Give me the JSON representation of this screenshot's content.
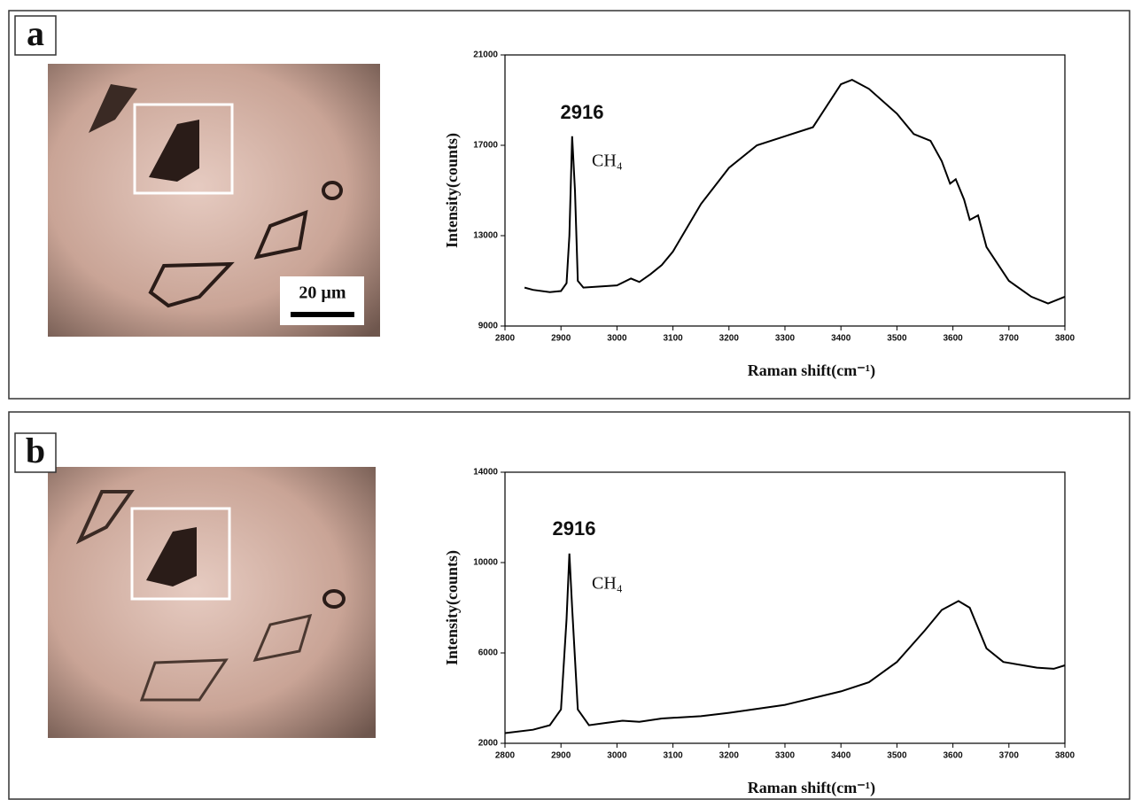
{
  "chart_data": [
    {
      "type": "line",
      "panel_label": "a",
      "scale_bar": "20 µm",
      "x_label": "Raman shift(cm⁻¹)",
      "y_label": "Intensity(counts)",
      "annotations": [
        "2916",
        "CH₄"
      ],
      "x": [
        2835,
        2850,
        2880,
        2900,
        2910,
        2915,
        2920,
        2925,
        2930,
        2940,
        2970,
        3000,
        3025,
        3040,
        3060,
        3080,
        3100,
        3150,
        3200,
        3250,
        3300,
        3350,
        3400,
        3420,
        3450,
        3500,
        3530,
        3560,
        3580,
        3595,
        3605,
        3620,
        3630,
        3645,
        3660,
        3700,
        3740,
        3770,
        3800
      ],
      "series": [
        {
          "color": "#000000",
          "values": [
            10700,
            10600,
            10500,
            10550,
            10900,
            13000,
            17400,
            15000,
            11000,
            10700,
            10750,
            10800,
            11100,
            10950,
            11300,
            11700,
            12300,
            14400,
            16000,
            17000,
            17400,
            17800,
            19700,
            19900,
            19500,
            18400,
            17500,
            17200,
            16300,
            15300,
            15500,
            14600,
            13700,
            13900,
            12500,
            11000,
            10300,
            10000,
            10300
          ]
        }
      ],
      "xlim": [
        2800,
        3800
      ],
      "xticks": [
        2800,
        2900,
        3000,
        3100,
        3200,
        3300,
        3400,
        3500,
        3600,
        3700,
        3800
      ],
      "ylim": [
        9000,
        21000
      ],
      "yticks": [
        9000,
        13000,
        17000,
        21000
      ]
    },
    {
      "type": "line",
      "panel_label": "b",
      "x_label": "Raman shift(cm⁻¹)",
      "y_label": "Intensity(counts)",
      "annotations": [
        "2916",
        "CH₄"
      ],
      "x": [
        2800,
        2850,
        2880,
        2900,
        2910,
        2915,
        2920,
        2930,
        2950,
        2980,
        3010,
        3040,
        3080,
        3150,
        3200,
        3300,
        3400,
        3450,
        3500,
        3550,
        3580,
        3610,
        3630,
        3660,
        3690,
        3750,
        3780,
        3800
      ],
      "series": [
        {
          "color": "#000000",
          "values": [
            2450,
            2600,
            2800,
            3500,
            7500,
            10400,
            8000,
            3500,
            2800,
            2900,
            3000,
            2950,
            3100,
            3200,
            3350,
            3700,
            4300,
            4700,
            5600,
            7000,
            7900,
            8300,
            8000,
            6200,
            5600,
            5350,
            5300,
            5450
          ]
        }
      ],
      "xlim": [
        2800,
        3800
      ],
      "xticks": [
        2800,
        2900,
        3000,
        3100,
        3200,
        3300,
        3400,
        3500,
        3600,
        3700,
        3800
      ],
      "ylim": [
        2000,
        14000
      ],
      "yticks": [
        2000,
        6000,
        10000,
        14000
      ]
    }
  ]
}
